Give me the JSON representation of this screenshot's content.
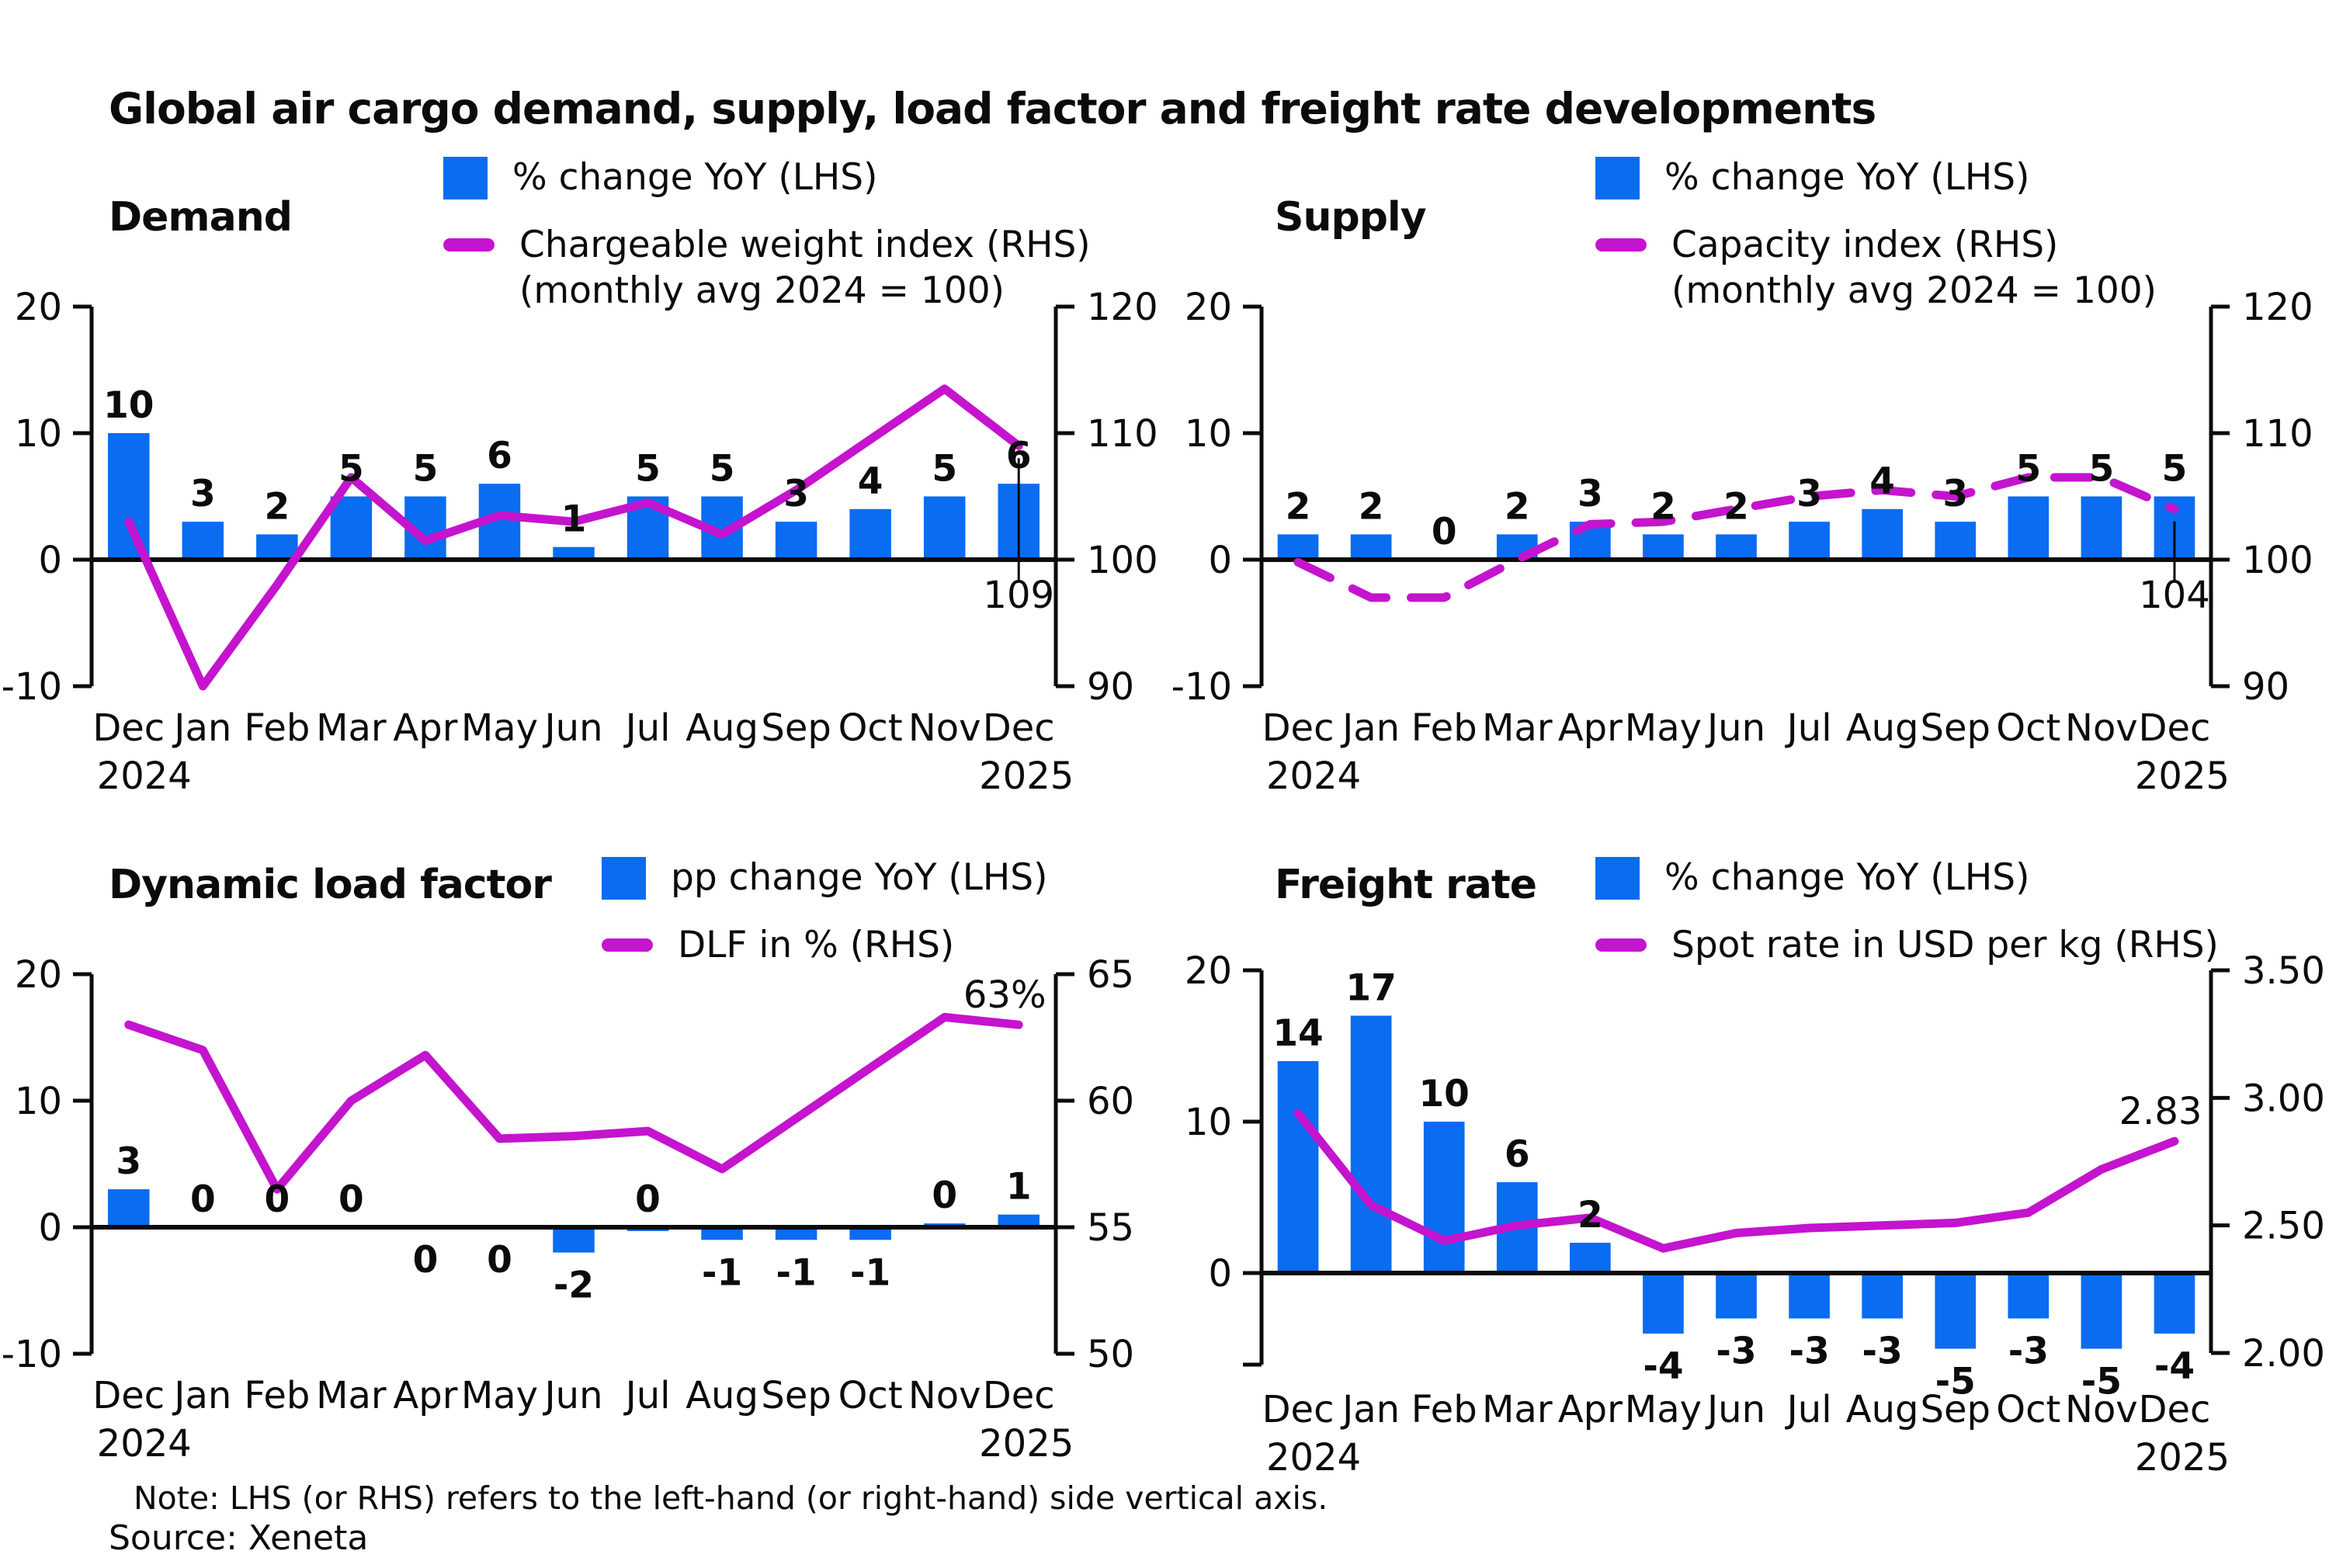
{
  "title": "Global air cargo demand, supply, load factor and freight rate developments",
  "note": "Note: LHS (or RHS) refers to the left-hand (or right-hand) side vertical axis.",
  "source": "Source: Xeneta",
  "colors": {
    "bar": "#0a6cf0",
    "line": "#c414ce",
    "text": "#0b0b0b"
  },
  "chart_data": [
    {
      "key": "demand",
      "type": "bar+line",
      "title": "Demand",
      "categories": [
        "Dec",
        "Jan",
        "Feb",
        "Mar",
        "Apr",
        "May",
        "Jun",
        "Jul",
        "Aug",
        "Sep",
        "Oct",
        "Nov",
        "Dec"
      ],
      "xlabel_years": [
        "2024",
        "2025"
      ],
      "bars": {
        "label": "% change YoY (LHS)",
        "values": [
          10,
          3,
          2,
          5,
          5,
          6,
          1,
          5,
          5,
          3,
          4,
          5,
          6
        ],
        "labels": [
          "10",
          "3",
          "2",
          "5",
          "5",
          "6",
          "1",
          "5",
          "5",
          "3",
          "4",
          "5",
          "6"
        ],
        "labels_below": [
          false,
          false,
          false,
          false,
          false,
          false,
          false,
          false,
          false,
          false,
          false,
          false,
          false
        ]
      },
      "line": {
        "label": "Chargeable weight index (RHS)",
        "sublabel": "(monthly avg 2024 = 100)",
        "values": [
          103,
          90,
          98,
          106.5,
          101.5,
          103.5,
          103,
          104.5,
          102,
          105.5,
          109.5,
          113.5,
          109
        ],
        "dashed": false,
        "end_label": "109",
        "end_callout": true
      },
      "lhs": {
        "ticks": [
          "20",
          "10",
          "0",
          "-10"
        ],
        "range": [
          -10,
          20
        ]
      },
      "rhs": {
        "ticks": [
          "120",
          "110",
          "100",
          "90"
        ],
        "range": [
          90,
          120
        ]
      }
    },
    {
      "key": "supply",
      "type": "bar+line",
      "title": "Supply",
      "categories": [
        "Dec",
        "Jan",
        "Feb",
        "Mar",
        "Apr",
        "May",
        "Jun",
        "Jul",
        "Aug",
        "Sep",
        "Oct",
        "Nov",
        "Dec"
      ],
      "xlabel_years": [
        "2024",
        "2025"
      ],
      "bars": {
        "label": "% change YoY (LHS)",
        "values": [
          2,
          2,
          0,
          2,
          3,
          2,
          2,
          3,
          4,
          3,
          5,
          5,
          5
        ],
        "labels": [
          "2",
          "2",
          "0",
          "2",
          "3",
          "2",
          "2",
          "3",
          "4",
          "3",
          "5",
          "5",
          "5"
        ],
        "labels_below": [
          false,
          false,
          false,
          false,
          false,
          false,
          false,
          false,
          false,
          false,
          false,
          false,
          false
        ]
      },
      "line": {
        "label": "Capacity index (RHS)",
        "sublabel": "(monthly avg 2024 = 100)",
        "values": [
          99.8,
          97,
          97,
          100,
          102.8,
          103,
          104,
          105,
          105.5,
          105,
          106.5,
          106.5,
          104
        ],
        "dashed": true,
        "end_label": "104",
        "end_callout": true
      },
      "lhs": {
        "ticks": [
          "20",
          "10",
          "0",
          "-10"
        ],
        "range": [
          -10,
          20
        ]
      },
      "rhs": {
        "ticks": [
          "120",
          "110",
          "100",
          "90"
        ],
        "range": [
          90,
          120
        ]
      }
    },
    {
      "key": "dlf",
      "type": "bar+line",
      "title": "Dynamic load factor",
      "categories": [
        "Dec",
        "Jan",
        "Feb",
        "Mar",
        "Apr",
        "May",
        "Jun",
        "Jul",
        "Aug",
        "Sep",
        "Oct",
        "Nov",
        "Dec"
      ],
      "xlabel_years": [
        "2024",
        "2025"
      ],
      "bars": {
        "label": "pp change YoY (LHS)",
        "values": [
          3,
          0,
          0,
          0,
          0,
          0,
          -2,
          -0.3,
          -1,
          -1,
          -1,
          0.3,
          1
        ],
        "labels": [
          "3",
          "0",
          "0",
          "0",
          "0",
          "0",
          "-2",
          "0",
          "-1",
          "-1",
          "-1",
          "0",
          "1"
        ],
        "labels_below": [
          false,
          false,
          false,
          false,
          true,
          true,
          true,
          false,
          true,
          true,
          true,
          false,
          false
        ]
      },
      "line": {
        "label": "DLF in % (RHS)",
        "sublabel": "",
        "values": [
          63,
          62,
          56.5,
          60,
          61.8,
          58.5,
          58.6,
          58.8,
          57.3,
          59.3,
          61.3,
          63.3,
          63
        ],
        "dashed": false,
        "end_label": "63%",
        "end_callout": false
      },
      "lhs": {
        "ticks": [
          "20",
          "10",
          "0",
          "-10"
        ],
        "range": [
          -10,
          20
        ]
      },
      "rhs": {
        "ticks": [
          "65",
          "60",
          "55",
          "50"
        ],
        "range": [
          50,
          65
        ]
      }
    },
    {
      "key": "freight",
      "type": "bar+line",
      "title": "Freight rate",
      "categories": [
        "Dec",
        "Jan",
        "Feb",
        "Mar",
        "Apr",
        "May",
        "Jun",
        "Jul",
        "Aug",
        "Sep",
        "Oct",
        "Nov",
        "Dec"
      ],
      "xlabel_years": [
        "2024",
        "2025"
      ],
      "bars": {
        "label": "% change YoY (LHS)",
        "values": [
          14,
          17,
          10,
          6,
          2,
          -4,
          -3,
          -3,
          -3,
          -5,
          -3,
          -5,
          -4
        ],
        "labels": [
          "14",
          "17",
          "10",
          "6",
          "2",
          "-4",
          "-3",
          "-3",
          "-3",
          "-5",
          "-3",
          "-5",
          "-4"
        ],
        "labels_below": [
          false,
          false,
          false,
          false,
          false,
          true,
          true,
          true,
          true,
          true,
          true,
          true,
          true
        ]
      },
      "line": {
        "label": "Spot rate in USD per kg (RHS)",
        "sublabel": "",
        "values": [
          2.94,
          2.58,
          2.44,
          2.5,
          2.53,
          2.41,
          2.47,
          2.49,
          2.5,
          2.51,
          2.55,
          2.72,
          2.83
        ],
        "dashed": false,
        "end_label": "2.83",
        "end_callout": false
      },
      "lhs": {
        "ticks": [
          "20",
          "10",
          "0"
        ],
        "range": [
          -6.05,
          20
        ]
      },
      "rhs": {
        "ticks": [
          "3.50",
          "3.00",
          "2.50",
          "2.00"
        ],
        "range": [
          2.0,
          3.5
        ]
      }
    }
  ]
}
